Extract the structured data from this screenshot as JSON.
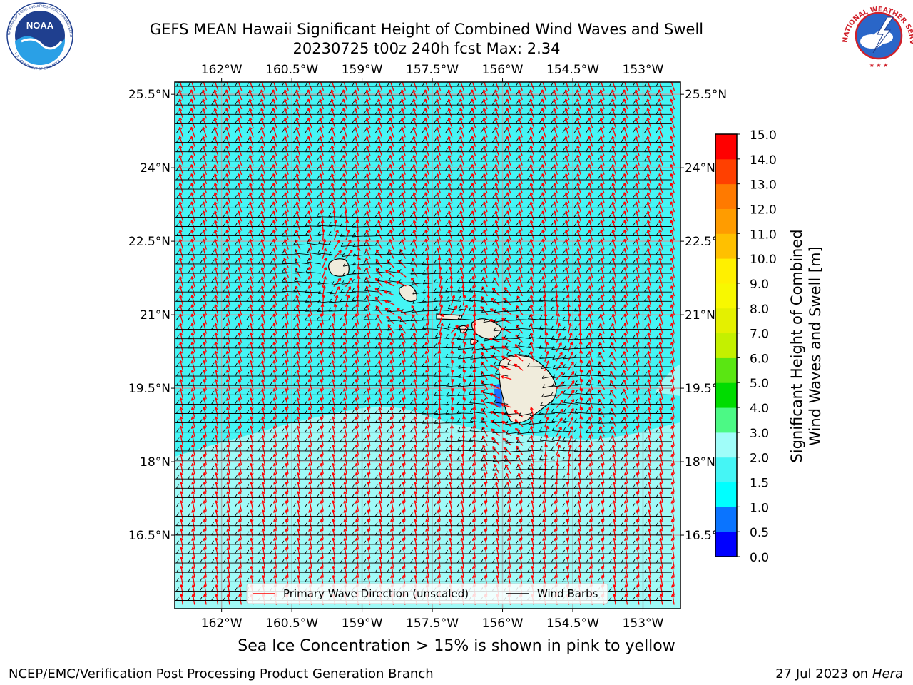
{
  "title": {
    "line1": "GEFS MEAN Hawaii Significant Height of Combined Wind Waves and Swell",
    "line2": "20230725 t00z 240h fcst   Max: 2.34"
  },
  "note": "Sea Ice Concentration > 15% is shown in pink to yellow",
  "footer": {
    "left": "NCEP/EMC/Verification Post Processing Product Generation Branch",
    "right_date": "27 Jul 2023 on ",
    "right_host": "Hera"
  },
  "logos": {
    "left": {
      "text": "NOAA",
      "ring_top": "NATIONAL OCEANIC AND ATMOSPHERIC ADMINISTRATION",
      "ring_bottom": "U.S. DEPARTMENT OF COMMERCE",
      "color": "#1f3f8f"
    },
    "right": {
      "ring_text": "NATIONAL WEATHER SERVICE",
      "color": "#d0202a"
    }
  },
  "legend": {
    "wave": "Primary Wave Direction (unscaled)",
    "wind": "Wind Barbs",
    "wave_color": "#ff0000",
    "wind_color": "#000000"
  },
  "colors": {
    "ocean_main": "#45f5f5",
    "ocean_light": "#9ffaf7",
    "land": "#f0ecdc",
    "grid": "#b0b0b0"
  },
  "chart_data": {
    "type": "heatmap",
    "title": "GEFS MEAN Hawaii Significant Height of Combined Wind Waves and Swell",
    "subtitle": "20230725 t00z 240h fcst   Max: 2.34",
    "max_value": 2.34,
    "x_ticks": [
      "162°W",
      "160.5°W",
      "159°W",
      "157.5°W",
      "156°W",
      "154.5°W",
      "153°W"
    ],
    "x_tick_values": [
      -162,
      -160.5,
      -159,
      -157.5,
      -156,
      -154.5,
      -153
    ],
    "y_ticks": [
      "25.5°N",
      "24°N",
      "22.5°N",
      "21°N",
      "19.5°N",
      "18°N",
      "16.5°N"
    ],
    "y_tick_values": [
      25.5,
      24,
      22.5,
      21,
      19.5,
      18,
      16.5
    ],
    "xlim": [
      -163,
      -152.2
    ],
    "ylim": [
      15,
      25.75
    ],
    "grid": true,
    "legend_position": "bottom-center",
    "colorbar": {
      "label": "Significant Height of Combined\nWind Waves and Swell [m]",
      "ticks": [
        "0.0",
        "0.5",
        "1.0",
        "1.5",
        "2.0",
        "3.0",
        "4.0",
        "5.0",
        "6.0",
        "7.0",
        "8.0",
        "9.0",
        "10.0",
        "11.0",
        "12.0",
        "13.0",
        "14.0",
        "15.0"
      ],
      "bins": [
        {
          "from": 0.0,
          "to": 0.5,
          "color": "#0000ff"
        },
        {
          "from": 0.5,
          "to": 1.0,
          "color": "#0a74ff"
        },
        {
          "from": 1.0,
          "to": 1.5,
          "color": "#00ffff"
        },
        {
          "from": 1.5,
          "to": 2.0,
          "color": "#45f5f5"
        },
        {
          "from": 2.0,
          "to": 3.0,
          "color": "#a0fdf9"
        },
        {
          "from": 3.0,
          "to": 4.0,
          "color": "#4cf985"
        },
        {
          "from": 4.0,
          "to": 5.0,
          "color": "#00dc00"
        },
        {
          "from": 5.0,
          "to": 6.0,
          "color": "#5ae612"
        },
        {
          "from": 6.0,
          "to": 7.0,
          "color": "#c4f000"
        },
        {
          "from": 7.0,
          "to": 8.0,
          "color": "#e4f000"
        },
        {
          "from": 8.0,
          "to": 9.0,
          "color": "#f8f800"
        },
        {
          "from": 9.0,
          "to": 10.0,
          "color": "#fff000"
        },
        {
          "from": 10.0,
          "to": 11.0,
          "color": "#ffc000"
        },
        {
          "from": 11.0,
          "to": 12.0,
          "color": "#ff9c00"
        },
        {
          "from": 12.0,
          "to": 13.0,
          "color": "#ff7a00"
        },
        {
          "from": 13.0,
          "to": 14.0,
          "color": "#ff4000"
        },
        {
          "from": 14.0,
          "to": 15.0,
          "color": "#ff0000"
        }
      ]
    }
  }
}
